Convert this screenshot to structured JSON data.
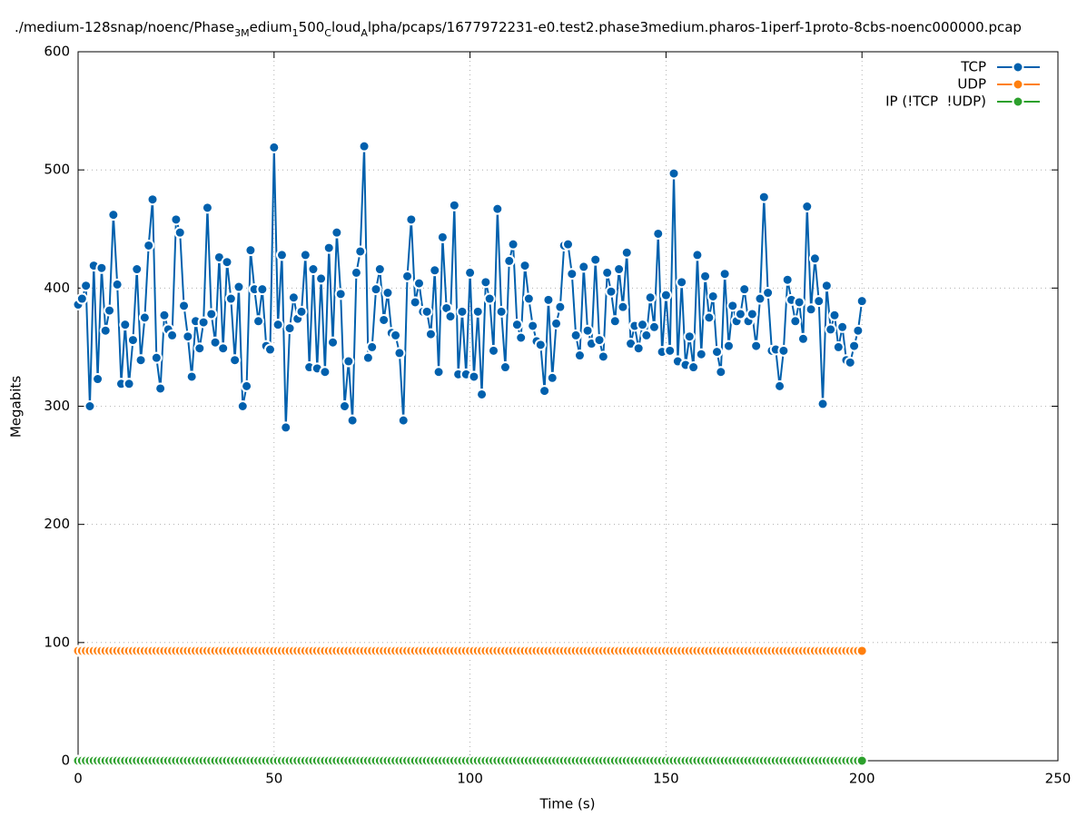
{
  "chart_data": {
    "type": "line",
    "title_parts": [
      {
        "text": "./medium-128snap/noenc/Phase"
      },
      {
        "text": "3M",
        "sub": true
      },
      {
        "text": "edium"
      },
      {
        "text": "1",
        "sub": true
      },
      {
        "text": "500"
      },
      {
        "text": "C",
        "sub": true
      },
      {
        "text": "loud"
      },
      {
        "text": "A",
        "sub": true
      },
      {
        "text": "lpha/pcaps/1677972231-e0.test2.phase3medium.pharos-1iperf-1proto-8cbs-noenc000000.pcap"
      }
    ],
    "xlabel": "Time (s)",
    "ylabel": "Megabits",
    "xlim": [
      0,
      250
    ],
    "xticks": [
      0,
      50,
      100,
      150,
      200,
      250
    ],
    "ylim": [
      0,
      600
    ],
    "yticks": [
      0,
      100,
      200,
      300,
      400,
      500,
      600
    ],
    "grid": true,
    "legend": "top-right",
    "x": [
      0,
      1,
      2,
      3,
      4,
      5,
      6,
      7,
      8,
      9,
      10,
      11,
      12,
      13,
      14,
      15,
      16,
      17,
      18,
      19,
      20,
      21,
      22,
      23,
      24,
      25,
      26,
      27,
      28,
      29,
      30,
      31,
      32,
      33,
      34,
      35,
      36,
      37,
      38,
      39,
      40,
      41,
      42,
      43,
      44,
      45,
      46,
      47,
      48,
      49,
      50,
      51,
      52,
      53,
      54,
      55,
      56,
      57,
      58,
      59,
      60,
      61,
      62,
      63,
      64,
      65,
      66,
      67,
      68,
      69,
      70,
      71,
      72,
      73,
      74,
      75,
      76,
      77,
      78,
      79,
      80,
      81,
      82,
      83,
      84,
      85,
      86,
      87,
      88,
      89,
      90,
      91,
      92,
      93,
      94,
      95,
      96,
      97,
      98,
      99,
      100,
      101,
      102,
      103,
      104,
      105,
      106,
      107,
      108,
      109,
      110,
      111,
      112,
      113,
      114,
      115,
      116,
      117,
      118,
      119,
      120,
      121,
      122,
      123,
      124,
      125,
      126,
      127,
      128,
      129,
      130,
      131,
      132,
      133,
      134,
      135,
      136,
      137,
      138,
      139,
      140,
      141,
      142,
      143,
      144,
      145,
      146,
      147,
      148,
      149,
      150,
      151,
      152,
      153,
      154,
      155,
      156,
      157,
      158,
      159,
      160,
      161,
      162,
      163,
      164,
      165,
      166,
      167,
      168,
      169,
      170,
      171,
      172,
      173,
      174,
      175,
      176,
      177,
      178,
      179,
      180,
      181,
      182,
      183,
      184,
      185,
      186,
      187,
      188,
      189,
      190,
      191,
      192,
      193,
      194,
      195,
      196,
      197,
      198,
      199,
      200
    ],
    "series": [
      {
        "name": "TCP",
        "color": "#0060ad",
        "values": [
          386,
          391,
          402,
          300,
          419,
          323,
          417,
          364,
          381,
          462,
          403,
          319,
          369,
          319,
          356,
          416,
          339,
          375,
          436,
          475,
          341,
          315,
          377,
          365,
          360,
          458,
          447,
          385,
          359,
          325,
          372,
          349,
          371,
          468,
          378,
          354,
          426,
          349,
          422,
          391,
          339,
          401,
          300,
          317,
          432,
          399,
          372,
          399,
          351,
          348,
          519,
          369,
          428,
          282,
          366,
          392,
          374,
          380,
          428,
          333,
          416,
          332,
          408,
          329,
          434,
          354,
          447,
          395,
          300,
          338,
          288,
          413,
          431,
          520,
          341,
          350,
          399,
          416,
          373,
          396,
          362,
          360,
          345,
          288,
          410,
          458,
          388,
          404,
          380,
          380,
          361,
          415,
          329,
          443,
          383,
          376,
          470,
          327,
          380,
          327,
          413,
          325,
          380,
          310,
          405,
          391,
          347,
          467,
          380,
          333,
          423,
          437,
          369,
          358,
          419,
          391,
          368,
          355,
          352,
          313,
          390,
          324,
          370,
          384,
          436,
          437,
          412,
          360,
          343,
          418,
          364,
          353,
          424,
          356,
          342,
          413,
          397,
          372,
          416,
          384,
          430,
          353,
          368,
          349,
          369,
          360,
          392,
          367,
          446,
          346,
          394,
          347,
          497,
          338,
          405,
          335,
          359,
          333,
          428,
          344,
          410,
          375,
          393,
          346,
          329,
          412,
          351,
          385,
          372,
          378,
          399,
          372,
          378,
          351,
          391,
          477,
          396,
          347,
          348,
          317,
          347,
          407,
          390,
          372,
          388,
          357,
          469,
          382,
          425,
          389,
          302,
          402,
          365,
          377,
          350,
          367,
          339,
          337,
          351,
          364,
          389
        ]
      },
      {
        "name": "UDP",
        "color": "#ff7f0e",
        "values": [
          93,
          93,
          93,
          93,
          93,
          93,
          93,
          93,
          93,
          93,
          93,
          93,
          93,
          93,
          93,
          93,
          93,
          93,
          93,
          93,
          93,
          93,
          93,
          93,
          93,
          93,
          93,
          93,
          93,
          93,
          93,
          93,
          93,
          93,
          93,
          93,
          93,
          93,
          93,
          93,
          93,
          93,
          93,
          93,
          93,
          93,
          93,
          93,
          93,
          93,
          93,
          93,
          93,
          93,
          93,
          93,
          93,
          93,
          93,
          93,
          93,
          93,
          93,
          93,
          93,
          93,
          93,
          93,
          93,
          93,
          93,
          93,
          93,
          93,
          93,
          93,
          93,
          93,
          93,
          93,
          93,
          93,
          93,
          93,
          93,
          93,
          93,
          93,
          93,
          93,
          93,
          93,
          93,
          93,
          93,
          93,
          93,
          93,
          93,
          93,
          93,
          93,
          93,
          93,
          93,
          93,
          93,
          93,
          93,
          93,
          93,
          93,
          93,
          93,
          93,
          93,
          93,
          93,
          93,
          93,
          93,
          93,
          93,
          93,
          93,
          93,
          93,
          93,
          93,
          93,
          93,
          93,
          93,
          93,
          93,
          93,
          93,
          93,
          93,
          93,
          93,
          93,
          93,
          93,
          93,
          93,
          93,
          93,
          93,
          93,
          93,
          93,
          93,
          93,
          93,
          93,
          93,
          93,
          93,
          93,
          93,
          93,
          93,
          93,
          93,
          93,
          93,
          93,
          93,
          93,
          93,
          93,
          93,
          93,
          93,
          93,
          93,
          93,
          93,
          93,
          93,
          93,
          93,
          93,
          93,
          93,
          93,
          93,
          93,
          93,
          93,
          93,
          93,
          93,
          93,
          93,
          93,
          93,
          93,
          93,
          93
        ]
      },
      {
        "name": "IP (!TCP  !UDP)",
        "color": "#2ca02c",
        "values": [
          0,
          0,
          0,
          0,
          0,
          0,
          0,
          0,
          0,
          0,
          0,
          0,
          0,
          0,
          0,
          0,
          0,
          0,
          0,
          0,
          0,
          0,
          0,
          0,
          0,
          0,
          0,
          0,
          0,
          0,
          0,
          0,
          0,
          0,
          0,
          0,
          0,
          0,
          0,
          0,
          0,
          0,
          0,
          0,
          0,
          0,
          0,
          0,
          0,
          0,
          0,
          0,
          0,
          0,
          0,
          0,
          0,
          0,
          0,
          0,
          0,
          0,
          0,
          0,
          0,
          0,
          0,
          0,
          0,
          0,
          0,
          0,
          0,
          0,
          0,
          0,
          0,
          0,
          0,
          0,
          0,
          0,
          0,
          0,
          0,
          0,
          0,
          0,
          0,
          0,
          0,
          0,
          0,
          0,
          0,
          0,
          0,
          0,
          0,
          0,
          0,
          0,
          0,
          0,
          0,
          0,
          0,
          0,
          0,
          0,
          0,
          0,
          0,
          0,
          0,
          0,
          0,
          0,
          0,
          0,
          0,
          0,
          0,
          0,
          0,
          0,
          0,
          0,
          0,
          0,
          0,
          0,
          0,
          0,
          0,
          0,
          0,
          0,
          0,
          0,
          0,
          0,
          0,
          0,
          0,
          0,
          0,
          0,
          0,
          0,
          0,
          0,
          0,
          0,
          0,
          0,
          0,
          0,
          0,
          0,
          0,
          0,
          0,
          0,
          0,
          0,
          0,
          0,
          0,
          0,
          0,
          0,
          0,
          0,
          0,
          0,
          0,
          0,
          0,
          0,
          0,
          0,
          0,
          0,
          0,
          0,
          0,
          0,
          0,
          0,
          0,
          0,
          0,
          0,
          0,
          0,
          0,
          0,
          0,
          0,
          0
        ]
      }
    ]
  }
}
